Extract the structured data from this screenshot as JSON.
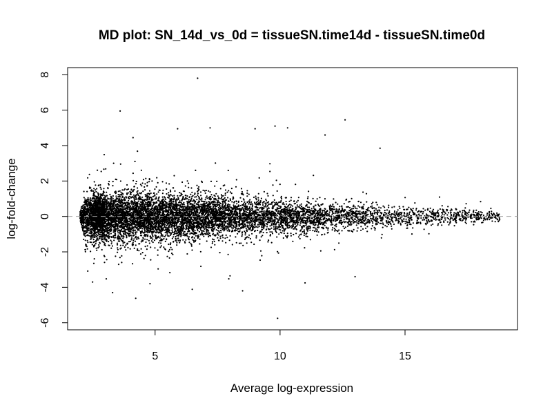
{
  "chart_data": {
    "type": "scatter",
    "title": "MD plot: SN_14d_vs_0d = tissueSN.time14d - tissueSN.time0d",
    "xlabel": "Average log-expression",
    "ylabel": "log-fold-change",
    "xlim": [
      1.5,
      19.5
    ],
    "ylim": [
      -6.4,
      8.4
    ],
    "x_ticks": [
      5,
      10,
      15
    ],
    "y_ticks": [
      -6,
      -4,
      -2,
      0,
      2,
      4,
      6,
      8
    ],
    "x_tick_labels": [
      "5",
      "10",
      "15"
    ],
    "y_tick_labels": [
      "-6",
      "-4",
      "-2",
      "0",
      "2",
      "4",
      "6",
      "8"
    ],
    "reference_line": {
      "y": 0,
      "style": "dashed",
      "color": "#a0a0a0"
    },
    "point_color": "#000000",
    "grid": false,
    "legend": "none",
    "notable_points": [
      {
        "x": 6.7,
        "y": 7.8
      },
      {
        "x": 3.6,
        "y": 5.95
      },
      {
        "x": 12.6,
        "y": 5.45
      },
      {
        "x": 9.8,
        "y": 5.1
      },
      {
        "x": 10.3,
        "y": 5.0
      },
      {
        "x": 9.0,
        "y": 4.95
      },
      {
        "x": 7.2,
        "y": 5.0
      },
      {
        "x": 5.9,
        "y": 4.95
      },
      {
        "x": 11.8,
        "y": 4.6
      },
      {
        "x": 14.0,
        "y": 3.85
      },
      {
        "x": 3.3,
        "y": -4.3
      },
      {
        "x": 8.5,
        "y": -4.2
      },
      {
        "x": 9.9,
        "y": -5.75
      },
      {
        "x": 2.5,
        "y": -3.7
      },
      {
        "x": 13.0,
        "y": -3.4
      },
      {
        "x": 11.0,
        "y": -3.75
      }
    ]
  }
}
